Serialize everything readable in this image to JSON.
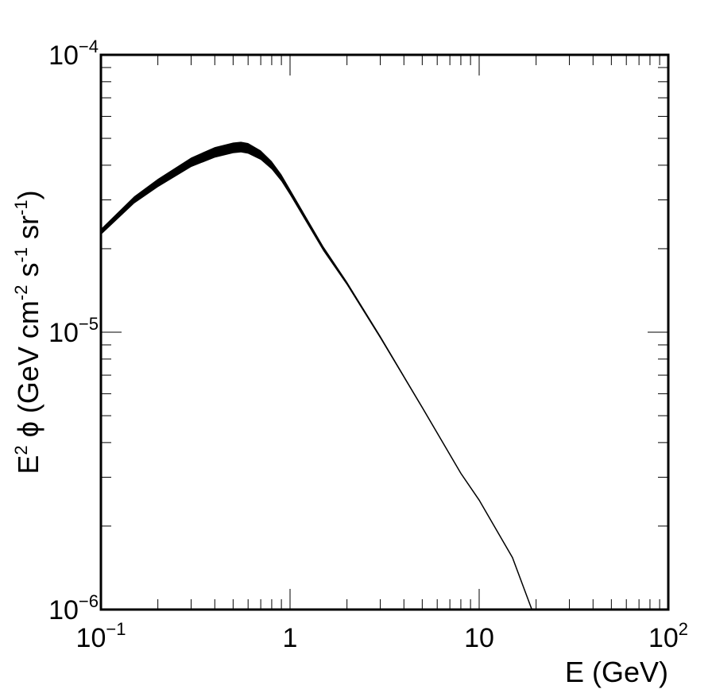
{
  "chart_data": {
    "type": "line",
    "title": "",
    "xscale": "log",
    "yscale": "log",
    "xlim": [
      0.1,
      100
    ],
    "ylim": [
      1e-06,
      0.0001
    ],
    "grid": false,
    "xlabel": {
      "text": "E (GeV)"
    },
    "ylabel": {
      "parts": [
        {
          "t": "E",
          "sup": false
        },
        {
          "t": "2",
          "sup": true
        },
        {
          "t": " ϕ (GeV cm",
          "sup": false
        },
        {
          "t": "-2",
          "sup": true
        },
        {
          "t": " s",
          "sup": false
        },
        {
          "t": "-1",
          "sup": true
        },
        {
          "t": " sr",
          "sup": false
        },
        {
          "t": "-1",
          "sup": true
        },
        {
          "t": ")",
          "sup": false
        }
      ]
    },
    "xticks": [
      {
        "value": 0.1,
        "base": "10",
        "exp": "−1"
      },
      {
        "value": 1,
        "base": "1",
        "exp": ""
      },
      {
        "value": 10,
        "base": "10",
        "exp": ""
      },
      {
        "value": 100,
        "base": "10",
        "exp": "2"
      }
    ],
    "yticks": [
      {
        "value": 1e-06,
        "base": "10",
        "exp": "−6"
      },
      {
        "value": 1e-05,
        "base": "10",
        "exp": "−5"
      },
      {
        "value": 0.0001,
        "base": "10",
        "exp": "−4"
      }
    ],
    "series": [
      {
        "color": "#000000",
        "band": true,
        "x": [
          0.1,
          0.15,
          0.2,
          0.3,
          0.4,
          0.5,
          0.55,
          0.6,
          0.7,
          0.8,
          0.9,
          1.0,
          1.5,
          2.0,
          3.0,
          5.0,
          8.0,
          10.0,
          15.0,
          19.0
        ],
        "y": [
          2.3e-05,
          3e-05,
          3.45e-05,
          4.1e-05,
          4.45e-05,
          4.62e-05,
          4.65e-05,
          4.6e-05,
          4.35e-05,
          4e-05,
          3.6e-05,
          3.2e-05,
          2e-05,
          1.5e-05,
          9.6e-06,
          5.35e-06,
          3.1e-06,
          2.48e-06,
          1.54e-06,
          1e-06
        ],
        "yerr": [
          0.025,
          0.03,
          0.035,
          0.04,
          0.045,
          0.045,
          0.045,
          0.045,
          0.04,
          0.035,
          0.03,
          0.025,
          0.02,
          0.015,
          0.012,
          0.008,
          0.006,
          0.005,
          0.004,
          0.003
        ]
      }
    ]
  }
}
